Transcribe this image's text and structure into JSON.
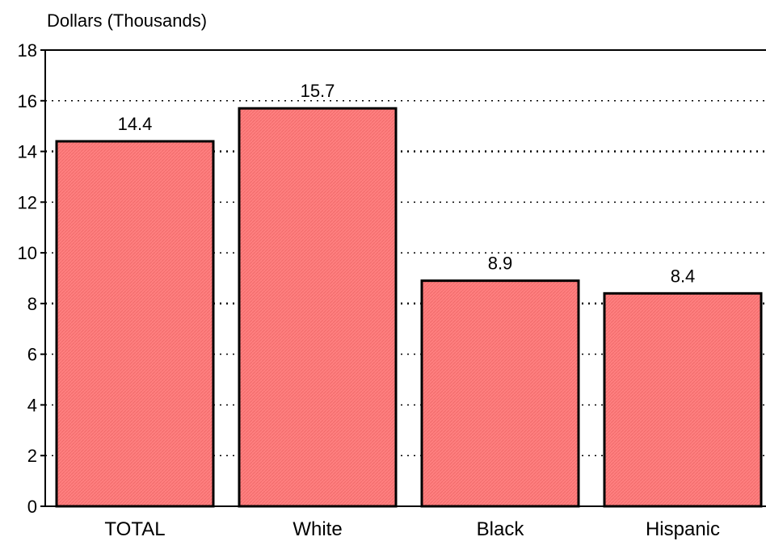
{
  "chart_data": {
    "type": "bar",
    "ylabel": "Dollars (Thousands)",
    "categories": [
      "TOTAL",
      "White",
      "Black",
      "Hispanic"
    ],
    "values": [
      14.4,
      15.7,
      8.9,
      8.4
    ],
    "data_labels": [
      "14.4",
      "15.7",
      "8.9",
      "8.4"
    ],
    "ylim": [
      0,
      18
    ],
    "yticks": [
      0,
      2,
      4,
      6,
      8,
      10,
      12,
      14,
      16,
      18
    ],
    "ytick_labels": [
      "0",
      "2",
      "4",
      "6",
      "8",
      "10",
      "12",
      "14",
      "16",
      "18"
    ],
    "grid": true,
    "bar_color": "#ff7f7f",
    "bar_edge_color": "#000000"
  }
}
